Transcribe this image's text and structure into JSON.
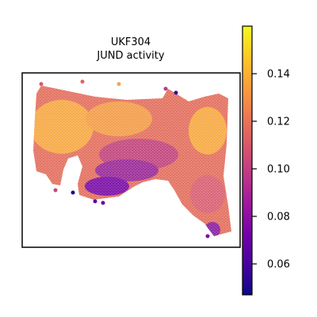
{
  "chart_data": {
    "type": "heatmap",
    "title_line1": "UKF304",
    "title_line2": "JUND activity",
    "xlabel": "",
    "ylabel": "",
    "grid": false,
    "legend": "colorbar-right",
    "colormap": "plasma",
    "colorbar": {
      "min": 0.047,
      "max": 0.16,
      "ticks": [
        0.06,
        0.08,
        0.1,
        0.12,
        0.14
      ],
      "tick_labels": [
        "0.06",
        "0.08",
        "0.10",
        "0.12",
        "0.14"
      ]
    },
    "plasma_stops": [
      "#0d0887",
      "#46039f",
      "#7201a8",
      "#9c179e",
      "#bd3786",
      "#d8576b",
      "#ed7953",
      "#fb9f3a",
      "#fdca26",
      "#f0f921"
    ]
  }
}
